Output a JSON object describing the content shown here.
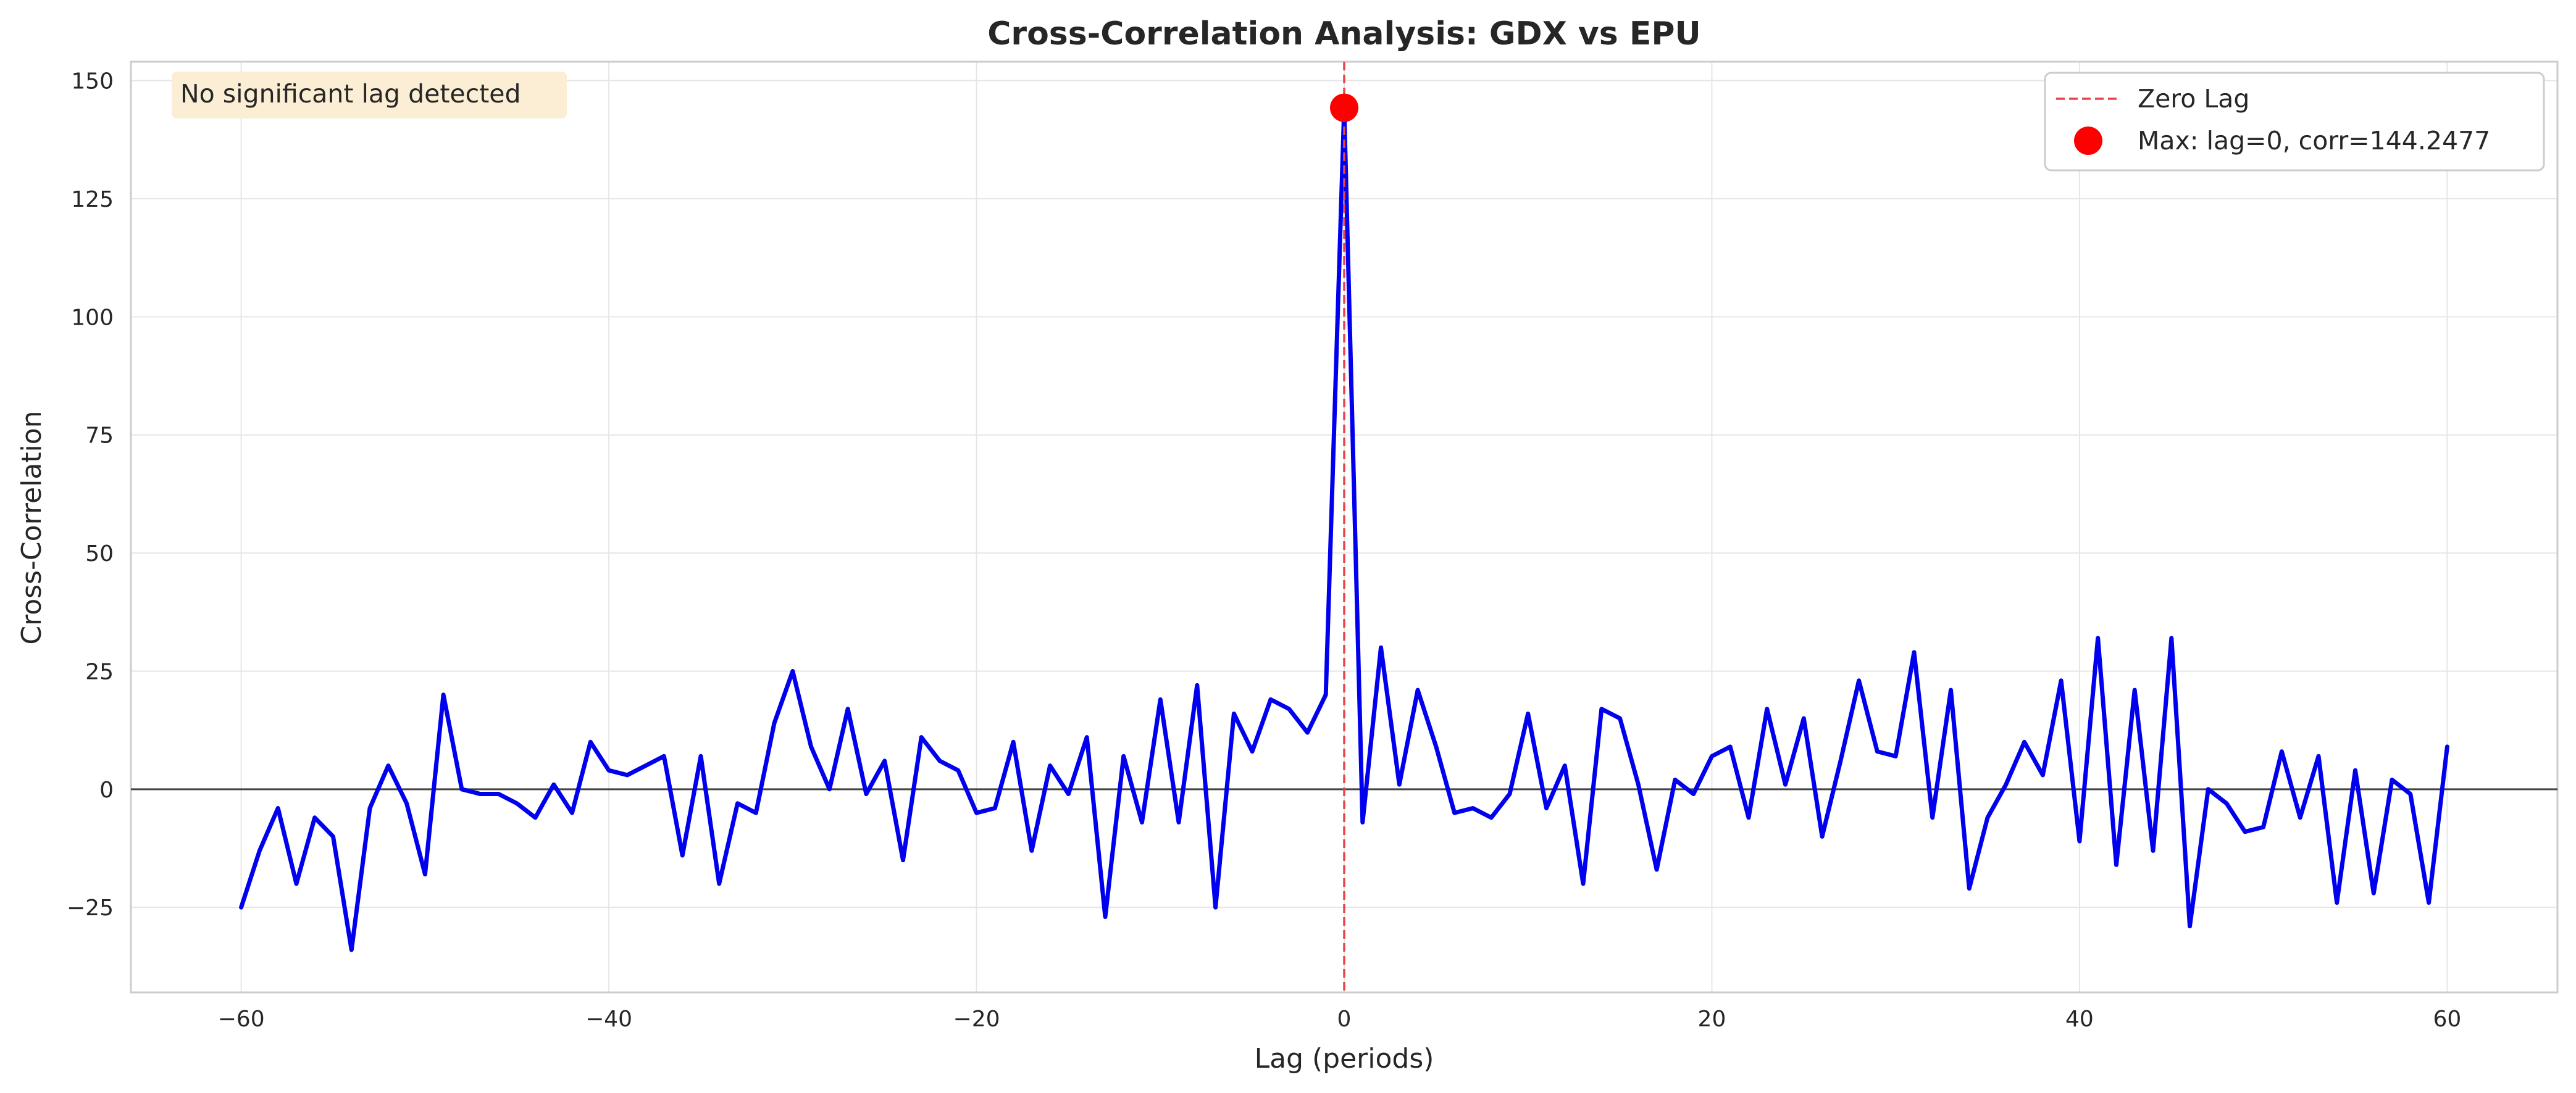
{
  "chart_data": {
    "type": "line",
    "title": "Cross-Correlation Analysis: GDX vs EPU",
    "xlabel": "Lag (periods)",
    "ylabel": "Cross-Correlation",
    "xlim": [
      -66,
      66
    ],
    "ylim": [
      -43,
      154
    ],
    "xticks": [
      -60,
      -40,
      -20,
      0,
      20,
      40,
      60
    ],
    "xtick_labels": [
      "−60",
      "−40",
      "−20",
      "0",
      "20",
      "40",
      "60"
    ],
    "yticks": [
      -25,
      0,
      25,
      50,
      75,
      100,
      125,
      150
    ],
    "ytick_labels": [
      "−25",
      "0",
      "25",
      "50",
      "75",
      "100",
      "125",
      "150"
    ],
    "grid": true,
    "legend_position": "top-right",
    "colors": {
      "series": "#0000ee",
      "zero_lag": "#e8444a",
      "max_marker": "#ff0000",
      "zero_line": "#444444",
      "grid": "#e6e6e6",
      "frame": "#cccccc",
      "note_bg": "#fbeed5"
    },
    "series": [
      {
        "x": [
          -60,
          -59,
          -58,
          -57,
          -56,
          -55,
          -54,
          -53,
          -52,
          -51,
          -50,
          -49,
          -48,
          -47,
          -46,
          -45,
          -44,
          -43,
          -42,
          -41,
          -40,
          -39,
          -38,
          -37,
          -36,
          -35,
          -34,
          -33,
          -32,
          -31,
          -30,
          -29,
          -28,
          -27,
          -26,
          -25,
          -24,
          -23,
          -22,
          -21,
          -20,
          -19,
          -18,
          -17,
          -16,
          -15,
          -14,
          -13,
          -12,
          -11,
          -10,
          -9,
          -8,
          -7,
          -6,
          -5,
          -4,
          -3,
          -2,
          -1,
          0,
          1,
          2,
          3,
          4,
          5,
          6,
          7,
          8,
          9,
          10,
          11,
          12,
          13,
          14,
          15,
          16,
          17,
          18,
          19,
          20,
          21,
          22,
          23,
          24,
          25,
          26,
          27,
          28,
          29,
          30,
          31,
          32,
          33,
          34,
          35,
          36,
          37,
          38,
          39,
          40,
          41,
          42,
          43,
          44,
          45,
          46,
          47,
          48,
          49,
          50,
          51,
          52,
          53,
          54,
          55,
          56,
          57,
          58,
          59,
          60
        ],
        "values": [
          -25,
          -13,
          -4,
          -20,
          -6,
          -10,
          -34,
          -4,
          5,
          -3,
          -18,
          20,
          0,
          -1,
          -1,
          -3,
          -6,
          1,
          -5,
          10,
          4,
          3,
          5,
          7,
          -14,
          7,
          -20,
          -3,
          -5,
          14,
          25,
          9,
          0,
          17,
          -1,
          6,
          -15,
          11,
          6,
          4,
          -5,
          -4,
          10,
          -13,
          5,
          -1,
          11,
          -27,
          7,
          -7,
          19,
          -7,
          22,
          -25,
          16,
          8,
          19,
          17,
          12,
          20,
          144.2477,
          -7,
          30,
          1,
          21,
          9,
          -5,
          -4,
          -6,
          -1,
          16,
          -4,
          5,
          -20,
          17,
          15,
          1,
          -17,
          2,
          -1,
          7,
          9,
          -6,
          17,
          1,
          15,
          -10,
          6,
          23,
          8,
          7,
          29,
          -6,
          21,
          -21,
          -6,
          1,
          10,
          3,
          23,
          -11,
          32,
          -16,
          21,
          -13,
          32,
          -29,
          0,
          -3,
          -9,
          -8,
          8,
          -6,
          7,
          -24,
          4,
          -22,
          2,
          -1,
          -24,
          9
        ]
      }
    ],
    "zero_lag_line": {
      "x": 0
    },
    "max_point": {
      "x": 0,
      "y": 144.2477
    },
    "legend": [
      {
        "label": "Zero Lag"
      },
      {
        "label": "Max: lag=0, corr=144.2477"
      }
    ],
    "annotation": "No significant lag detected"
  }
}
